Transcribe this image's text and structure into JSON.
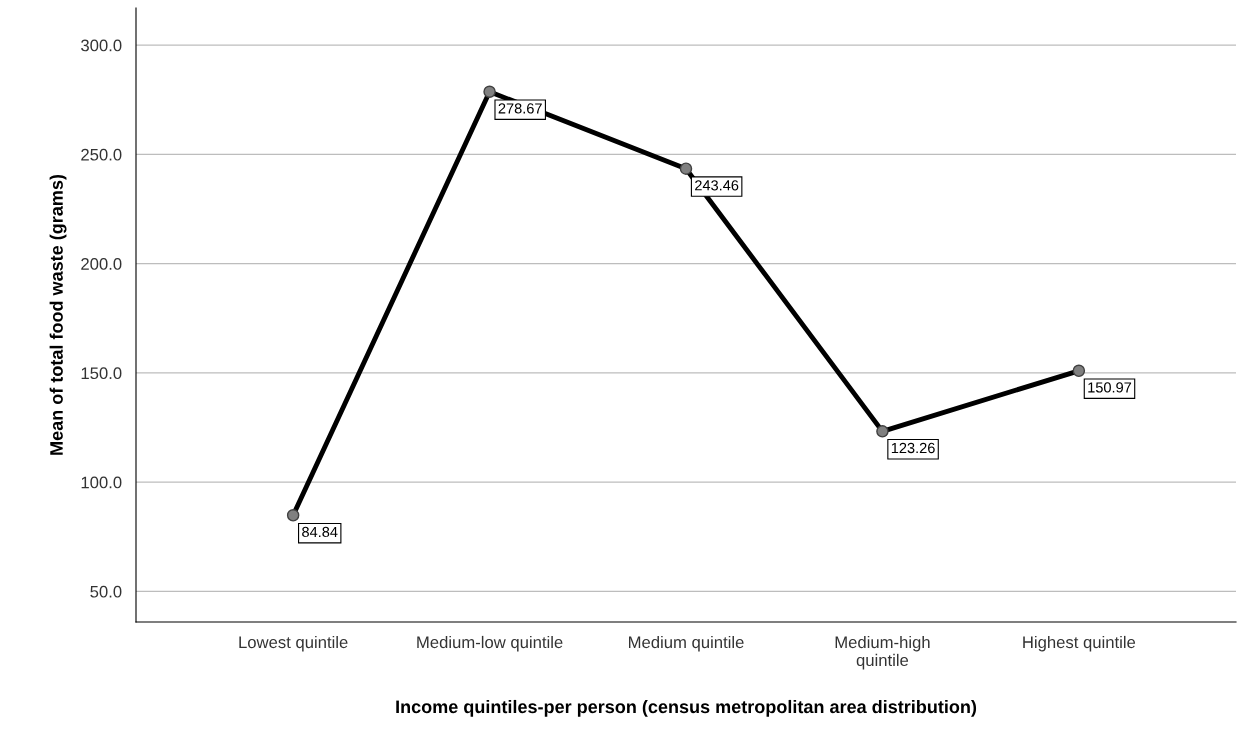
{
  "chart_data": {
    "type": "line",
    "xlabel": "Income quintiles-per person (census metropolitan area distribution)",
    "ylabel": "Mean of total food waste (grams)",
    "categories": [
      "Lowest quintile",
      "Medium-low quintile",
      "Medium quintile",
      "Medium-high quintile",
      "Highest quintile"
    ],
    "series": [
      {
        "color": "#000000",
        "values": [
          84.84,
          278.67,
          243.46,
          123.26,
          150.97
        ]
      }
    ],
    "ylim": [
      36,
      317
    ],
    "yticks": [
      {
        "value": 50,
        "label": "50.0"
      },
      {
        "value": 100,
        "label": "100.0"
      },
      {
        "value": 150,
        "label": "150.0"
      },
      {
        "value": 200,
        "label": "200.0"
      },
      {
        "value": 250,
        "label": "250.0"
      },
      {
        "value": 300,
        "label": "300.0"
      }
    ],
    "grid": "y",
    "marker": "circle",
    "line_style": "solid",
    "data_labels": true
  }
}
